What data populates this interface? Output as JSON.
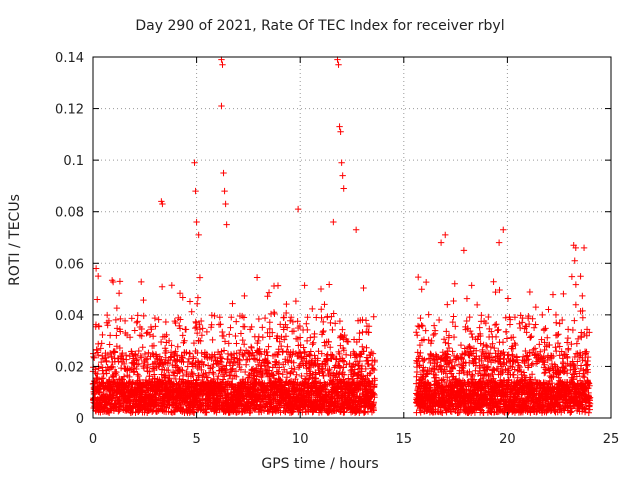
{
  "chart_data": {
    "type": "scatter",
    "title": "Day 290 of 2021, Rate Of TEC Index for receiver rbyl",
    "xlabel": "GPS time / hours",
    "ylabel": "ROTI / TECUs",
    "xlim": [
      0,
      25
    ],
    "ylim": [
      0,
      0.14
    ],
    "xticks": [
      0,
      5,
      10,
      15,
      20,
      25
    ],
    "yticks": [
      0,
      0.02,
      0.04,
      0.06,
      0.08,
      0.1,
      0.12,
      0.14
    ],
    "ytick_labels": [
      "0",
      "0.02",
      "0.04",
      "0.06",
      "0.08",
      "0.1",
      "0.12",
      "0.14"
    ],
    "grid": true,
    "marker": "+",
    "color": "#ff0000",
    "data_segments": [
      {
        "start": 0.0,
        "end": 13.6
      },
      {
        "start": 15.6,
        "end": 24.0
      }
    ],
    "notable_points": [
      {
        "x": 0.15,
        "y": 0.058
      },
      {
        "x": 0.25,
        "y": 0.055
      },
      {
        "x": 1.3,
        "y": 0.053
      },
      {
        "x": 3.3,
        "y": 0.084
      },
      {
        "x": 3.35,
        "y": 0.083
      },
      {
        "x": 4.9,
        "y": 0.099
      },
      {
        "x": 4.95,
        "y": 0.088
      },
      {
        "x": 5.0,
        "y": 0.076
      },
      {
        "x": 5.1,
        "y": 0.071
      },
      {
        "x": 6.2,
        "y": 0.139
      },
      {
        "x": 6.25,
        "y": 0.137
      },
      {
        "x": 6.2,
        "y": 0.121
      },
      {
        "x": 6.3,
        "y": 0.095
      },
      {
        "x": 6.35,
        "y": 0.088
      },
      {
        "x": 6.4,
        "y": 0.083
      },
      {
        "x": 6.45,
        "y": 0.075
      },
      {
        "x": 9.9,
        "y": 0.081
      },
      {
        "x": 11.8,
        "y": 0.139
      },
      {
        "x": 11.85,
        "y": 0.137
      },
      {
        "x": 11.9,
        "y": 0.113
      },
      {
        "x": 11.95,
        "y": 0.111
      },
      {
        "x": 12.0,
        "y": 0.099
      },
      {
        "x": 12.05,
        "y": 0.094
      },
      {
        "x": 12.1,
        "y": 0.089
      },
      {
        "x": 11.6,
        "y": 0.076
      },
      {
        "x": 12.7,
        "y": 0.073
      },
      {
        "x": 17.0,
        "y": 0.071
      },
      {
        "x": 16.8,
        "y": 0.068
      },
      {
        "x": 17.9,
        "y": 0.065
      },
      {
        "x": 19.6,
        "y": 0.068
      },
      {
        "x": 19.8,
        "y": 0.073
      },
      {
        "x": 23.2,
        "y": 0.067
      },
      {
        "x": 23.3,
        "y": 0.066
      },
      {
        "x": 23.7,
        "y": 0.066
      },
      {
        "x": 23.25,
        "y": 0.061
      }
    ]
  }
}
